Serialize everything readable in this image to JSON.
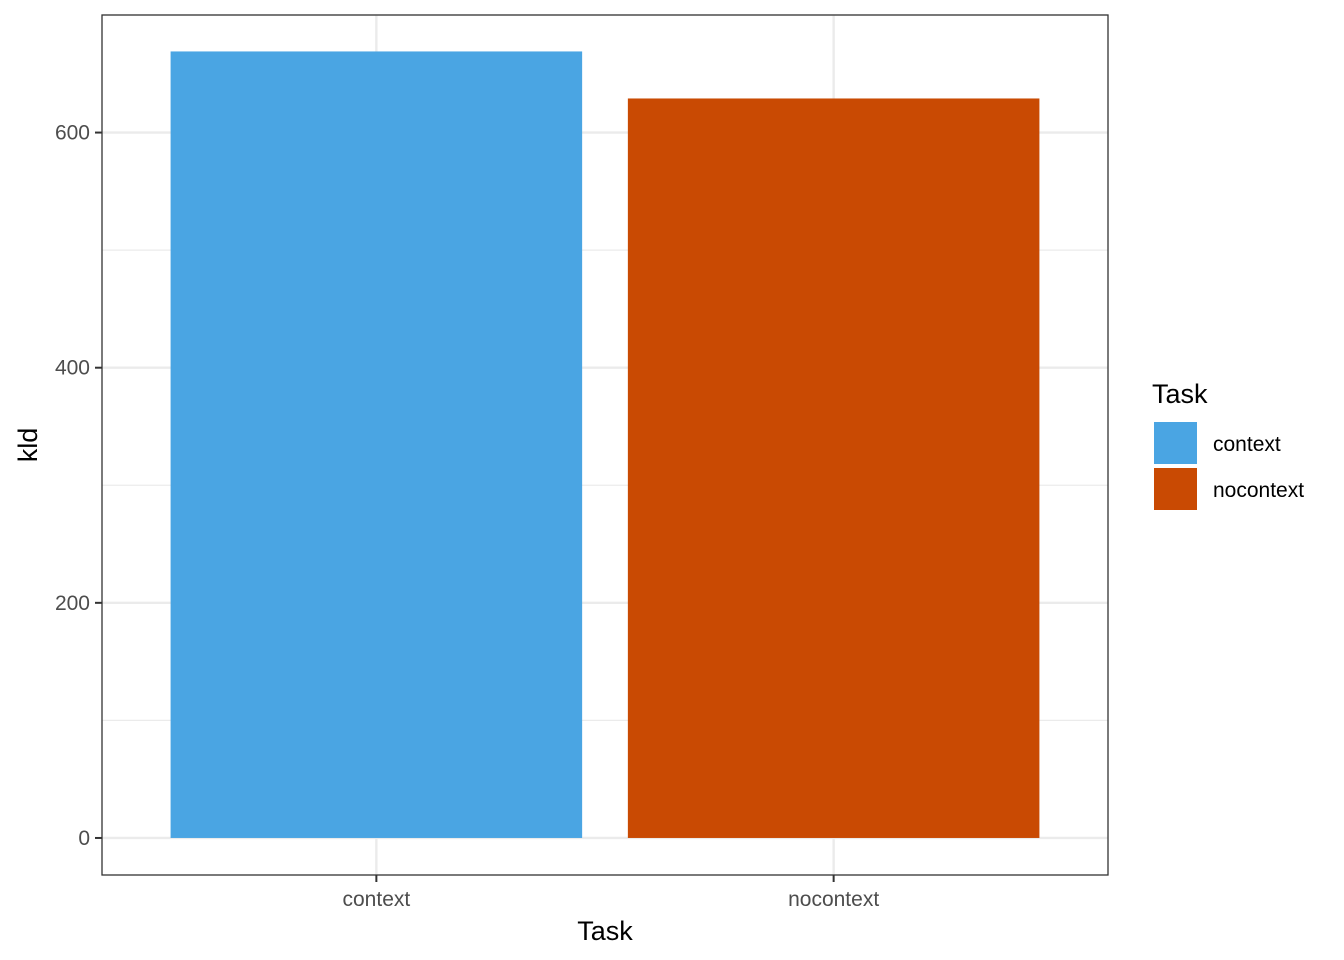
{
  "chart_data": {
    "type": "bar",
    "categories": [
      "context",
      "nocontext"
    ],
    "values": [
      669,
      629
    ],
    "colors": [
      "#4aa5e3",
      "#c94a03"
    ],
    "xlabel": "Task",
    "ylabel": "kld",
    "ylim": [
      -31.5,
      700
    ],
    "yticks": [
      0,
      200,
      400,
      600
    ],
    "ytick_labels": [
      "0",
      "200",
      "400",
      "600"
    ],
    "grid": true,
    "legend": {
      "title": "Task",
      "position": "right",
      "items": [
        "context",
        "nocontext"
      ]
    }
  }
}
